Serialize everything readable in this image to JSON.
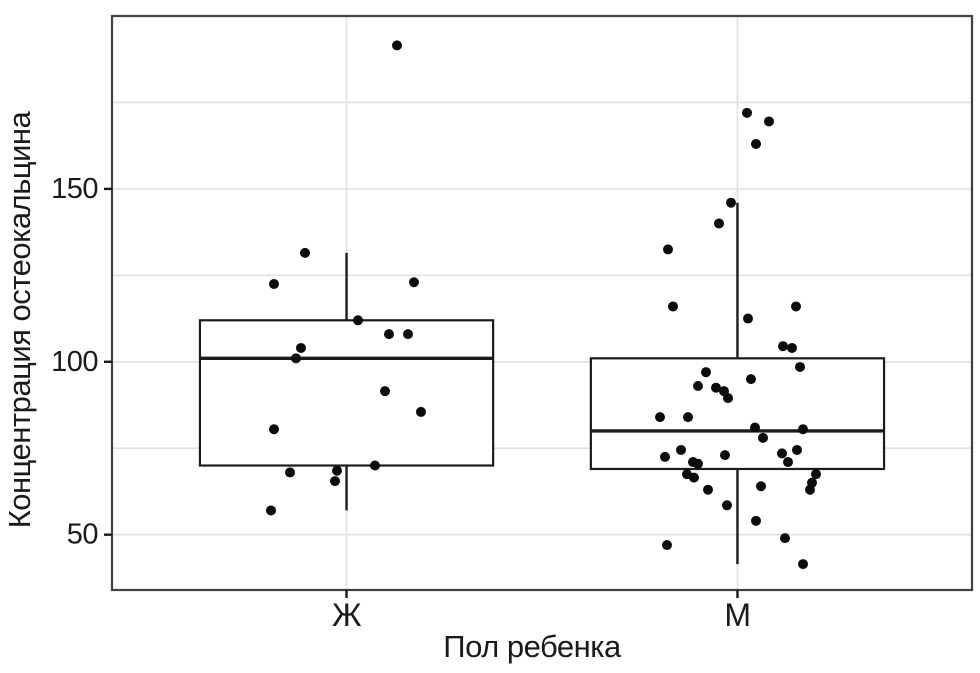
{
  "chart_data": {
    "type": "boxplot",
    "title": "",
    "xlabel": "Пол ребенка",
    "ylabel": "Концентрация остеокальцина",
    "categories": [
      "Ж",
      "М"
    ],
    "y_ticks": [
      50,
      100,
      150
    ],
    "y_gridlines": [
      50,
      75,
      100,
      125,
      150,
      175
    ],
    "ylim": [
      34,
      200
    ],
    "grid": true,
    "legend_position": "none",
    "boxes": [
      {
        "category": "Ж",
        "whisker_low": 57,
        "q1": 70,
        "median": 101,
        "q3": 112,
        "whisker_high": 131.5
      },
      {
        "category": "М",
        "whisker_low": 41.5,
        "q1": 69,
        "median": 80,
        "q3": 101,
        "whisker_high": 146
      }
    ],
    "points": {
      "Ж": [
        [
          397,
          191.5
        ],
        [
          305,
          131.5
        ],
        [
          414,
          123
        ],
        [
          274,
          122.5
        ],
        [
          358,
          112
        ],
        [
          389,
          108
        ],
        [
          408,
          108
        ],
        [
          301,
          104
        ],
        [
          296,
          101
        ],
        [
          385,
          91.5
        ],
        [
          421,
          85.5
        ],
        [
          274,
          80.5
        ],
        [
          375,
          70
        ],
        [
          337,
          68.5
        ],
        [
          290,
          68
        ],
        [
          335,
          65.5
        ],
        [
          271,
          57
        ]
      ],
      "М": [
        [
          747,
          172
        ],
        [
          769,
          169.5
        ],
        [
          756,
          163
        ],
        [
          731,
          146
        ],
        [
          719,
          140
        ],
        [
          668,
          132.5
        ],
        [
          673,
          116
        ],
        [
          796,
          116
        ],
        [
          748,
          112.5
        ],
        [
          783,
          104.5
        ],
        [
          792,
          104
        ],
        [
          800,
          98.5
        ],
        [
          706,
          97
        ],
        [
          751,
          95
        ],
        [
          698,
          93
        ],
        [
          716,
          92.5
        ],
        [
          724,
          91.5
        ],
        [
          728,
          89.5
        ],
        [
          660,
          84
        ],
        [
          688,
          84
        ],
        [
          755,
          81
        ],
        [
          803,
          80.5
        ],
        [
          763,
          78
        ],
        [
          797,
          74.5
        ],
        [
          681,
          74.5
        ],
        [
          782,
          73.5
        ],
        [
          725,
          73
        ],
        [
          665,
          72.5
        ],
        [
          693,
          71
        ],
        [
          788,
          71
        ],
        [
          698,
          70.5
        ],
        [
          687,
          67.5
        ],
        [
          816,
          67.5
        ],
        [
          694,
          66.5
        ],
        [
          812,
          65
        ],
        [
          761,
          64
        ],
        [
          708,
          63
        ],
        [
          810,
          63
        ],
        [
          727,
          58.5
        ],
        [
          756,
          54
        ],
        [
          785,
          49
        ],
        [
          667,
          47
        ],
        [
          803,
          41.5
        ]
      ]
    },
    "colors": {
      "point": "#0c0c0c",
      "box_stroke": "#1c1c1c",
      "box_fill": "#ffffff",
      "grid": "#e0e0e0",
      "panel_border": "#404040",
      "tick": "#1a1a1a",
      "text": "#1a1a1a",
      "background": "#ffffff"
    }
  }
}
